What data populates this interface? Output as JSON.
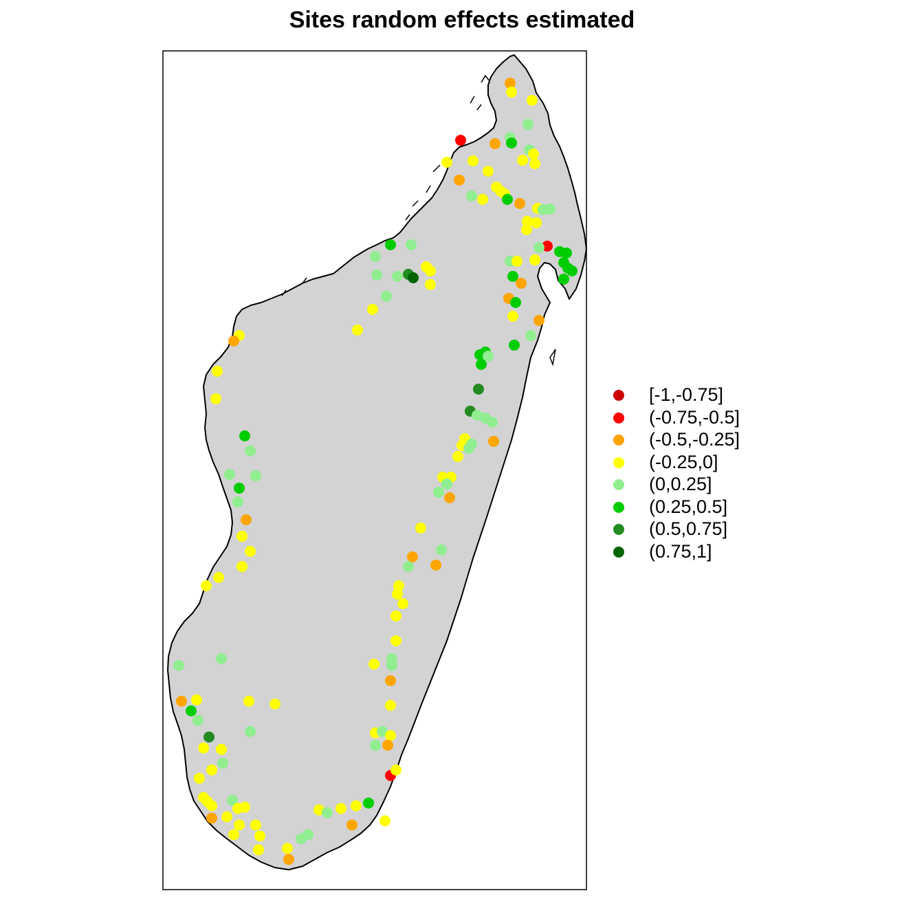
{
  "title": "Sites random effects estimated",
  "legend": [
    {
      "label": "[-1,-0.75]",
      "color": "#cc0000"
    },
    {
      "label": "(-0.75,-0.5]",
      "color": "#ff0000"
    },
    {
      "label": "(-0.5,-0.25]",
      "color": "#ffa500"
    },
    {
      "label": "(-0.25,0]",
      "color": "#ffff00"
    },
    {
      "label": "(0,0.25]",
      "color": "#90ee90"
    },
    {
      "label": "(0.25,0.5]",
      "color": "#00cd00"
    },
    {
      "label": "(0.5,0.75]",
      "color": "#228b22"
    },
    {
      "label": "(0.75,1]",
      "color": "#006400"
    }
  ],
  "map": {
    "region": "Madagascar",
    "land_color": "#d3d3d3",
    "coast_color": "#000000"
  },
  "sites_class_counts": {
    "(-0.75,-0.5]": 3,
    "(-0.5,-0.25]": 21,
    "(-0.25,0]": 84,
    "(0,0.25]": 46,
    "(0.25,0.5]": 28,
    "(0.5,0.75]": 3,
    "(0.75,1]": 1
  }
}
